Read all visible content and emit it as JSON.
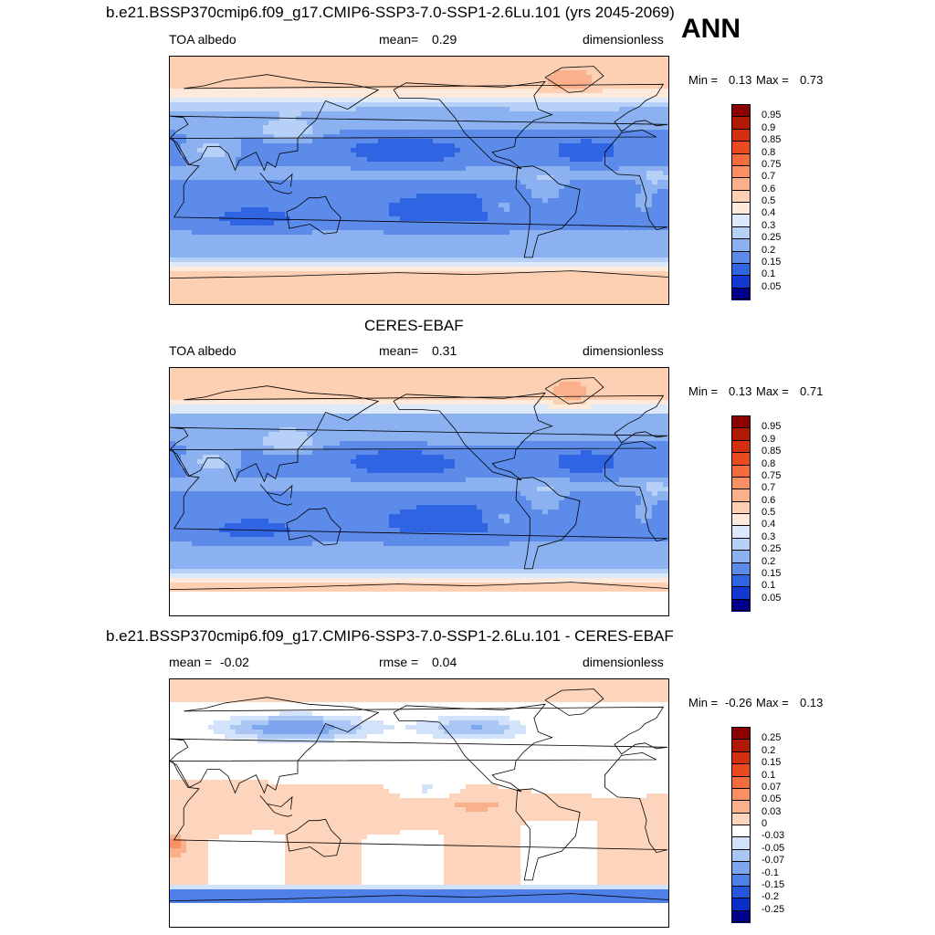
{
  "season": "ANN",
  "colors": {
    "blue_scale": [
      "#00008b",
      "#0a1fc9",
      "#1f4fe0",
      "#3a6fe8",
      "#6a96ef",
      "#9dbcf4",
      "#c8dbf8",
      "#e8f0fc"
    ],
    "red_scale": [
      "#fff0e6",
      "#fdd6c0",
      "#fbb699",
      "#f79270",
      "#ef6a45",
      "#e2461f",
      "#c42a0f",
      "#8b0000"
    ]
  },
  "chart_data": [
    {
      "type": "heatmap",
      "title": "b.e21.BSSP370cmip6.f09_g17.CMIP6-SSP3-7.0-SSP1-2.6Lu.101 (yrs 2045-2069)",
      "left_label": "TOA albedo",
      "center_label": "mean=",
      "center_value": "0.29",
      "right_label": "dimensionless",
      "min_label": "Min =",
      "min_value": "0.13",
      "max_label": "Max =",
      "max_value": "0.73",
      "colorbar_levels": [
        "0.95",
        "0.9",
        "0.85",
        "0.8",
        "0.75",
        "0.7",
        "0.6",
        "0.5",
        "0.4",
        "0.3",
        "0.25",
        "0.2",
        "0.15",
        "0.1",
        "0.05"
      ],
      "colorbar_colors": [
        "#8b0000",
        "#b01a05",
        "#d2300e",
        "#ea4a1f",
        "#f56c3c",
        "#f98f62",
        "#fbb08c",
        "#fdd0b4",
        "#fdeadc",
        "#dce9fb",
        "#b7d0f7",
        "#8cb1f1",
        "#5c8bea",
        "#2f64e3",
        "#1438cf",
        "#00008b"
      ],
      "mean": 0.29,
      "min": 0.13,
      "max": 0.73
    },
    {
      "type": "heatmap",
      "title": "CERES-EBAF",
      "left_label": "TOA albedo",
      "center_label": "mean=",
      "center_value": "0.31",
      "right_label": "dimensionless",
      "min_label": "Min =",
      "min_value": "0.13",
      "max_label": "Max =",
      "max_value": "0.71",
      "colorbar_levels": [
        "0.95",
        "0.9",
        "0.85",
        "0.8",
        "0.75",
        "0.7",
        "0.6",
        "0.5",
        "0.4",
        "0.3",
        "0.25",
        "0.2",
        "0.15",
        "0.1",
        "0.05"
      ],
      "colorbar_colors": [
        "#8b0000",
        "#b01a05",
        "#d2300e",
        "#ea4a1f",
        "#f56c3c",
        "#f98f62",
        "#fbb08c",
        "#fdd0b4",
        "#fdeadc",
        "#dce9fb",
        "#b7d0f7",
        "#8cb1f1",
        "#5c8bea",
        "#2f64e3",
        "#1438cf",
        "#00008b"
      ],
      "mean": 0.31,
      "min": 0.13,
      "max": 0.71
    },
    {
      "type": "heatmap",
      "title": "b.e21.BSSP370cmip6.f09_g17.CMIP6-SSP3-7.0-SSP1-2.6Lu.101 - CERES-EBAF",
      "left_label": "mean =",
      "left_value": "-0.02",
      "center_label": "rmse =",
      "center_value": "0.04",
      "right_label": "dimensionless",
      "min_label": "Min =",
      "min_value": "-0.26",
      "max_label": "Max =",
      "max_value": "0.13",
      "colorbar_levels": [
        "0.25",
        "0.2",
        "0.15",
        "0.1",
        "0.07",
        "0.05",
        "0.03",
        "0",
        "-0.03",
        "-0.05",
        "-0.07",
        "-0.1",
        "-0.15",
        "-0.2",
        "-0.25"
      ],
      "colorbar_colors": [
        "#8b0000",
        "#b01a05",
        "#d2300e",
        "#ea4a1f",
        "#f56c3c",
        "#f98f62",
        "#fbb08c",
        "#fdd5bd",
        "#ffffff",
        "#d3e2fb",
        "#a9c6f5",
        "#7ea6ef",
        "#4f80e8",
        "#2656dc",
        "#0b2fc6",
        "#00008b"
      ],
      "mean": -0.02,
      "rmse": 0.04,
      "min": -0.26,
      "max": 0.13
    }
  ]
}
